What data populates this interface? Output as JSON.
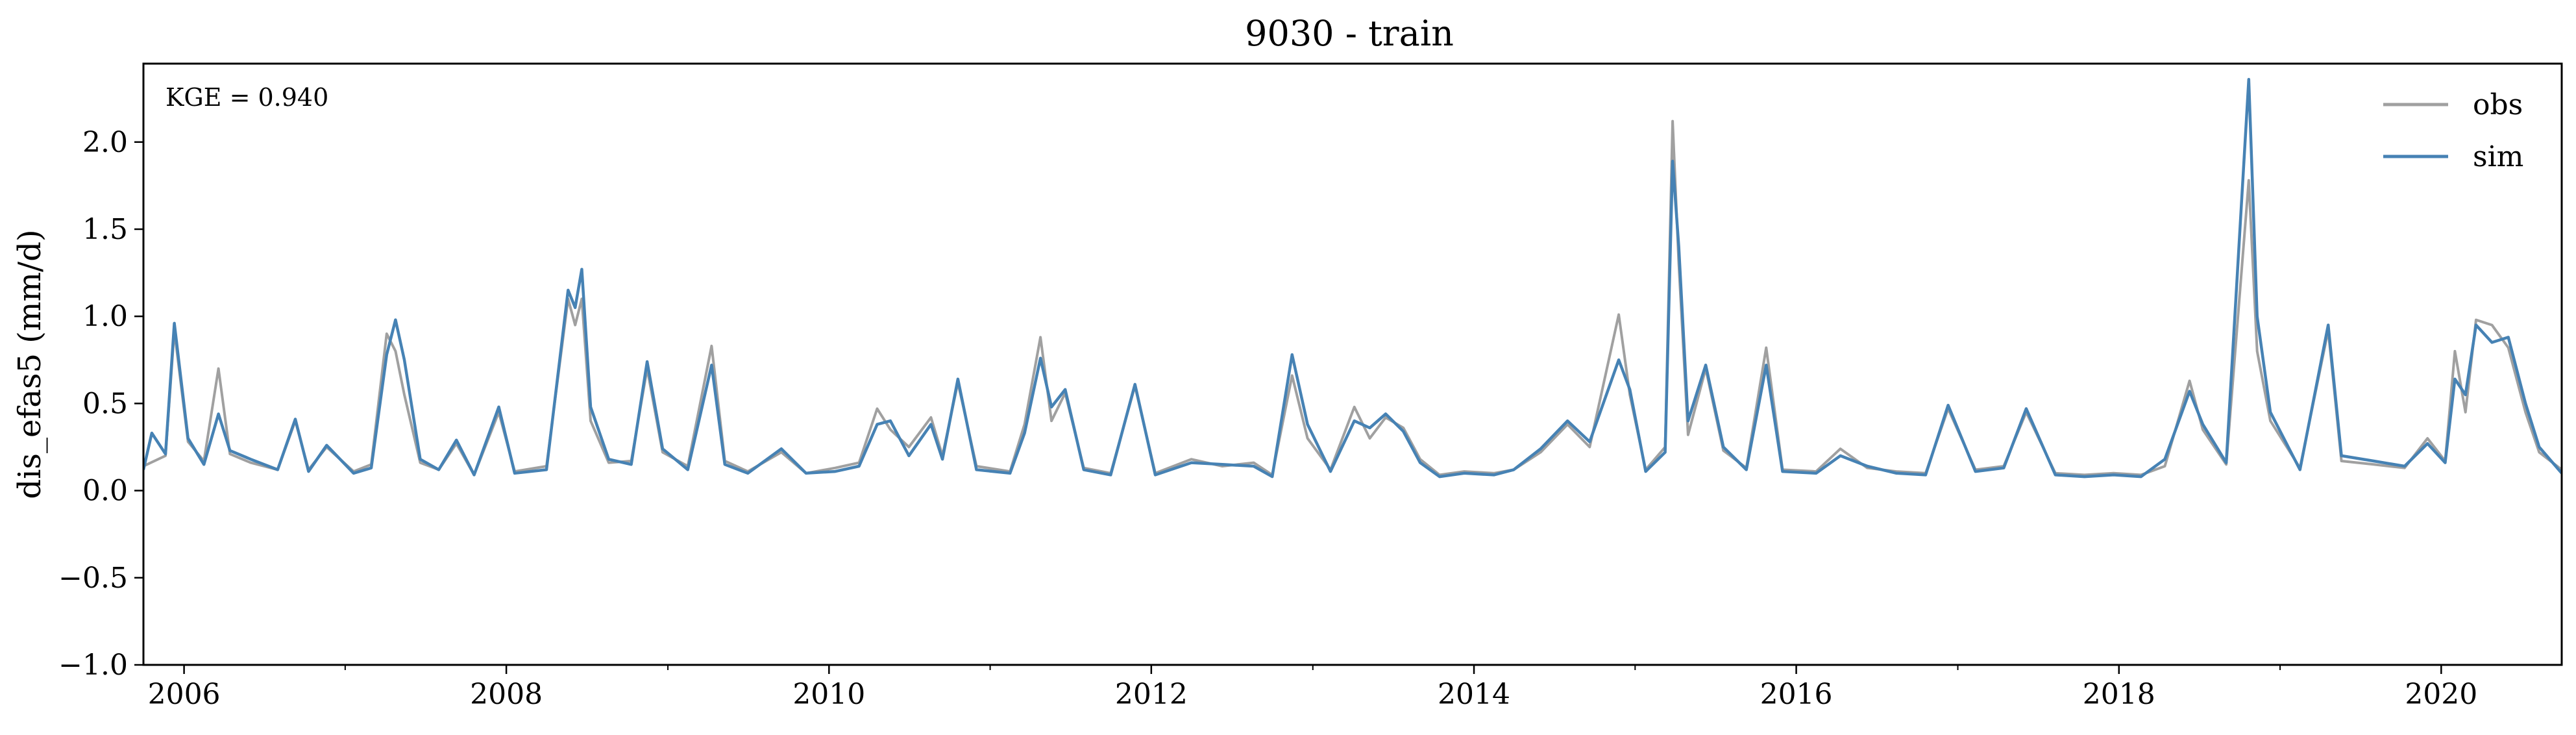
{
  "chart_data": {
    "type": "line",
    "title": "9030 - train",
    "xlabel": "",
    "ylabel": "dis_efas5 (mm/d)",
    "annotation": "KGE = 0.940",
    "xlim": [
      "2005-10-01",
      "2020-09-30"
    ],
    "ylim": [
      -1.0,
      2.45
    ],
    "yticks": [
      -1.0,
      -0.5,
      0.0,
      0.5,
      1.0,
      1.5,
      2.0
    ],
    "ytick_labels": [
      "−1.0",
      "−0.5",
      "0.0",
      "0.5",
      "1.0",
      "1.5",
      "2.0"
    ],
    "xticks": [
      "2006-01-01",
      "2008-01-01",
      "2010-01-01",
      "2012-01-01",
      "2014-01-01",
      "2016-01-01",
      "2018-01-01",
      "2020-01-01"
    ],
    "xtick_labels": [
      "2006",
      "2008",
      "2010",
      "2012",
      "2014",
      "2016",
      "2018",
      "2020"
    ],
    "grid": false,
    "legend_position": "top-right",
    "series": [
      {
        "name": "obs",
        "color": "#a0a0a0",
        "points": [
          [
            "2005-10-01",
            0.14
          ],
          [
            "2005-11-20",
            0.2
          ],
          [
            "2005-12-10",
            0.92
          ],
          [
            "2006-01-10",
            0.28
          ],
          [
            "2006-02-15",
            0.17
          ],
          [
            "2006-03-20",
            0.7
          ],
          [
            "2006-04-15",
            0.21
          ],
          [
            "2006-06-01",
            0.16
          ],
          [
            "2006-08-01",
            0.12
          ],
          [
            "2006-09-10",
            0.4
          ],
          [
            "2006-10-10",
            0.12
          ],
          [
            "2006-11-20",
            0.25
          ],
          [
            "2007-01-20",
            0.11
          ],
          [
            "2007-03-01",
            0.15
          ],
          [
            "2007-04-05",
            0.9
          ],
          [
            "2007-04-25",
            0.8
          ],
          [
            "2007-05-15",
            0.55
          ],
          [
            "2007-06-20",
            0.16
          ],
          [
            "2007-08-01",
            0.12
          ],
          [
            "2007-09-10",
            0.27
          ],
          [
            "2007-10-20",
            0.09
          ],
          [
            "2007-12-15",
            0.45
          ],
          [
            "2008-01-20",
            0.11
          ],
          [
            "2008-04-01",
            0.14
          ],
          [
            "2008-05-20",
            1.1
          ],
          [
            "2008-06-05",
            0.95
          ],
          [
            "2008-06-20",
            1.1
          ],
          [
            "2008-07-10",
            0.4
          ],
          [
            "2008-08-20",
            0.16
          ],
          [
            "2008-10-10",
            0.17
          ],
          [
            "2008-11-15",
            0.7
          ],
          [
            "2008-12-20",
            0.22
          ],
          [
            "2009-02-15",
            0.14
          ],
          [
            "2009-04-10",
            0.83
          ],
          [
            "2009-05-10",
            0.17
          ],
          [
            "2009-07-01",
            0.11
          ],
          [
            "2009-09-15",
            0.22
          ],
          [
            "2009-11-10",
            0.1
          ],
          [
            "2010-01-15",
            0.13
          ],
          [
            "2010-03-10",
            0.16
          ],
          [
            "2010-04-20",
            0.47
          ],
          [
            "2010-05-20",
            0.35
          ],
          [
            "2010-07-01",
            0.25
          ],
          [
            "2010-08-20",
            0.42
          ],
          [
            "2010-09-15",
            0.2
          ],
          [
            "2010-10-20",
            0.62
          ],
          [
            "2010-12-01",
            0.14
          ],
          [
            "2011-02-15",
            0.11
          ],
          [
            "2011-03-20",
            0.38
          ],
          [
            "2011-04-25",
            0.88
          ],
          [
            "2011-05-20",
            0.4
          ],
          [
            "2011-06-20",
            0.56
          ],
          [
            "2011-08-01",
            0.13
          ],
          [
            "2011-10-01",
            0.1
          ],
          [
            "2011-11-25",
            0.6
          ],
          [
            "2012-01-10",
            0.1
          ],
          [
            "2012-04-01",
            0.18
          ],
          [
            "2012-06-10",
            0.14
          ],
          [
            "2012-08-20",
            0.16
          ],
          [
            "2012-10-01",
            0.09
          ],
          [
            "2012-11-15",
            0.66
          ],
          [
            "2012-12-20",
            0.3
          ],
          [
            "2013-02-10",
            0.12
          ],
          [
            "2013-04-05",
            0.48
          ],
          [
            "2013-05-10",
            0.3
          ],
          [
            "2013-06-15",
            0.42
          ],
          [
            "2013-07-25",
            0.36
          ],
          [
            "2013-09-01",
            0.18
          ],
          [
            "2013-10-15",
            0.09
          ],
          [
            "2013-12-10",
            0.11
          ],
          [
            "2014-02-15",
            0.1
          ],
          [
            "2014-04-01",
            0.12
          ],
          [
            "2014-06-01",
            0.22
          ],
          [
            "2014-08-01",
            0.38
          ],
          [
            "2014-09-20",
            0.25
          ],
          [
            "2014-11-25",
            1.01
          ],
          [
            "2014-12-20",
            0.55
          ],
          [
            "2015-01-25",
            0.12
          ],
          [
            "2015-03-10",
            0.25
          ],
          [
            "2015-03-27",
            2.12
          ],
          [
            "2015-04-10",
            1.3
          ],
          [
            "2015-05-01",
            0.32
          ],
          [
            "2015-06-10",
            0.7
          ],
          [
            "2015-07-20",
            0.23
          ],
          [
            "2015-09-10",
            0.13
          ],
          [
            "2015-10-25",
            0.82
          ],
          [
            "2015-12-01",
            0.12
          ],
          [
            "2016-02-15",
            0.11
          ],
          [
            "2016-04-10",
            0.24
          ],
          [
            "2016-06-10",
            0.13
          ],
          [
            "2016-08-15",
            0.11
          ],
          [
            "2016-10-20",
            0.1
          ],
          [
            "2016-12-10",
            0.47
          ],
          [
            "2017-02-10",
            0.12
          ],
          [
            "2017-04-15",
            0.14
          ],
          [
            "2017-06-05",
            0.45
          ],
          [
            "2017-08-10",
            0.1
          ],
          [
            "2017-10-15",
            0.09
          ],
          [
            "2017-12-20",
            0.1
          ],
          [
            "2018-02-20",
            0.09
          ],
          [
            "2018-04-15",
            0.14
          ],
          [
            "2018-06-10",
            0.63
          ],
          [
            "2018-07-10",
            0.35
          ],
          [
            "2018-09-01",
            0.15
          ],
          [
            "2018-10-22",
            1.78
          ],
          [
            "2018-11-10",
            0.8
          ],
          [
            "2018-12-10",
            0.4
          ],
          [
            "2019-02-15",
            0.13
          ],
          [
            "2019-04-20",
            0.92
          ],
          [
            "2019-05-20",
            0.17
          ],
          [
            "2019-08-01",
            0.15
          ],
          [
            "2019-10-10",
            0.13
          ],
          [
            "2019-12-01",
            0.3
          ],
          [
            "2020-01-10",
            0.17
          ],
          [
            "2020-02-01",
            0.8
          ],
          [
            "2020-02-25",
            0.45
          ],
          [
            "2020-03-20",
            0.98
          ],
          [
            "2020-04-25",
            0.95
          ],
          [
            "2020-06-01",
            0.82
          ],
          [
            "2020-07-10",
            0.45
          ],
          [
            "2020-08-10",
            0.22
          ],
          [
            "2020-09-30",
            0.12
          ]
        ]
      },
      {
        "name": "sim",
        "color": "#4682b4",
        "points": [
          [
            "2005-10-01",
            0.12
          ],
          [
            "2005-10-20",
            0.33
          ],
          [
            "2005-11-20",
            0.21
          ],
          [
            "2005-12-10",
            0.96
          ],
          [
            "2006-01-10",
            0.3
          ],
          [
            "2006-02-15",
            0.15
          ],
          [
            "2006-03-20",
            0.44
          ],
          [
            "2006-04-15",
            0.23
          ],
          [
            "2006-06-01",
            0.18
          ],
          [
            "2006-08-01",
            0.12
          ],
          [
            "2006-09-10",
            0.41
          ],
          [
            "2006-10-10",
            0.11
          ],
          [
            "2006-11-20",
            0.26
          ],
          [
            "2007-01-20",
            0.1
          ],
          [
            "2007-03-01",
            0.13
          ],
          [
            "2007-04-05",
            0.78
          ],
          [
            "2007-04-25",
            0.98
          ],
          [
            "2007-05-15",
            0.75
          ],
          [
            "2007-06-20",
            0.18
          ],
          [
            "2007-08-01",
            0.12
          ],
          [
            "2007-09-10",
            0.29
          ],
          [
            "2007-10-20",
            0.09
          ],
          [
            "2007-12-15",
            0.48
          ],
          [
            "2008-01-20",
            0.1
          ],
          [
            "2008-04-01",
            0.12
          ],
          [
            "2008-05-20",
            1.15
          ],
          [
            "2008-06-05",
            1.05
          ],
          [
            "2008-06-20",
            1.27
          ],
          [
            "2008-07-10",
            0.48
          ],
          [
            "2008-08-20",
            0.18
          ],
          [
            "2008-10-10",
            0.15
          ],
          [
            "2008-11-15",
            0.74
          ],
          [
            "2008-12-20",
            0.24
          ],
          [
            "2009-02-15",
            0.12
          ],
          [
            "2009-04-10",
            0.72
          ],
          [
            "2009-05-10",
            0.15
          ],
          [
            "2009-07-01",
            0.1
          ],
          [
            "2009-09-15",
            0.24
          ],
          [
            "2009-11-10",
            0.1
          ],
          [
            "2010-01-15",
            0.11
          ],
          [
            "2010-03-10",
            0.14
          ],
          [
            "2010-04-20",
            0.38
          ],
          [
            "2010-05-20",
            0.4
          ],
          [
            "2010-07-01",
            0.2
          ],
          [
            "2010-08-20",
            0.38
          ],
          [
            "2010-09-15",
            0.18
          ],
          [
            "2010-10-20",
            0.64
          ],
          [
            "2010-12-01",
            0.12
          ],
          [
            "2011-02-15",
            0.1
          ],
          [
            "2011-03-20",
            0.33
          ],
          [
            "2011-04-25",
            0.76
          ],
          [
            "2011-05-20",
            0.48
          ],
          [
            "2011-06-20",
            0.58
          ],
          [
            "2011-08-01",
            0.12
          ],
          [
            "2011-10-01",
            0.09
          ],
          [
            "2011-11-25",
            0.61
          ],
          [
            "2012-01-10",
            0.09
          ],
          [
            "2012-04-01",
            0.16
          ],
          [
            "2012-06-10",
            0.15
          ],
          [
            "2012-08-20",
            0.14
          ],
          [
            "2012-10-01",
            0.08
          ],
          [
            "2012-11-15",
            0.78
          ],
          [
            "2012-12-20",
            0.38
          ],
          [
            "2013-02-10",
            0.11
          ],
          [
            "2013-04-05",
            0.4
          ],
          [
            "2013-05-10",
            0.36
          ],
          [
            "2013-06-15",
            0.44
          ],
          [
            "2013-07-25",
            0.34
          ],
          [
            "2013-09-01",
            0.16
          ],
          [
            "2013-10-15",
            0.08
          ],
          [
            "2013-12-10",
            0.1
          ],
          [
            "2014-02-15",
            0.09
          ],
          [
            "2014-04-01",
            0.12
          ],
          [
            "2014-06-01",
            0.24
          ],
          [
            "2014-08-01",
            0.4
          ],
          [
            "2014-09-20",
            0.28
          ],
          [
            "2014-11-25",
            0.75
          ],
          [
            "2014-12-20",
            0.58
          ],
          [
            "2015-01-25",
            0.11
          ],
          [
            "2015-03-10",
            0.22
          ],
          [
            "2015-03-27",
            1.89
          ],
          [
            "2015-04-10",
            1.4
          ],
          [
            "2015-05-01",
            0.4
          ],
          [
            "2015-06-10",
            0.72
          ],
          [
            "2015-07-20",
            0.25
          ],
          [
            "2015-09-10",
            0.12
          ],
          [
            "2015-10-25",
            0.72
          ],
          [
            "2015-12-01",
            0.11
          ],
          [
            "2016-02-15",
            0.1
          ],
          [
            "2016-04-10",
            0.2
          ],
          [
            "2016-06-10",
            0.14
          ],
          [
            "2016-08-15",
            0.1
          ],
          [
            "2016-10-20",
            0.09
          ],
          [
            "2016-12-10",
            0.49
          ],
          [
            "2017-02-10",
            0.11
          ],
          [
            "2017-04-15",
            0.13
          ],
          [
            "2017-06-05",
            0.47
          ],
          [
            "2017-08-10",
            0.09
          ],
          [
            "2017-10-15",
            0.08
          ],
          [
            "2017-12-20",
            0.09
          ],
          [
            "2018-02-20",
            0.08
          ],
          [
            "2018-04-15",
            0.18
          ],
          [
            "2018-06-10",
            0.57
          ],
          [
            "2018-07-10",
            0.38
          ],
          [
            "2018-09-01",
            0.16
          ],
          [
            "2018-10-22",
            2.36
          ],
          [
            "2018-11-10",
            1.0
          ],
          [
            "2018-12-10",
            0.45
          ],
          [
            "2019-02-15",
            0.12
          ],
          [
            "2019-04-20",
            0.95
          ],
          [
            "2019-05-20",
            0.2
          ],
          [
            "2019-08-01",
            0.17
          ],
          [
            "2019-10-10",
            0.14
          ],
          [
            "2019-12-01",
            0.27
          ],
          [
            "2020-01-10",
            0.16
          ],
          [
            "2020-02-01",
            0.64
          ],
          [
            "2020-02-25",
            0.55
          ],
          [
            "2020-03-20",
            0.95
          ],
          [
            "2020-04-25",
            0.85
          ],
          [
            "2020-06-01",
            0.88
          ],
          [
            "2020-07-10",
            0.5
          ],
          [
            "2020-08-10",
            0.25
          ],
          [
            "2020-09-30",
            0.1
          ]
        ]
      }
    ]
  }
}
